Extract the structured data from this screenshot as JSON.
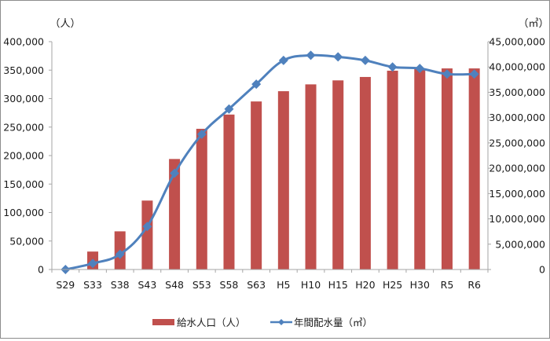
{
  "chart_data": {
    "type": "bar+line",
    "title": "",
    "categories": [
      "S29",
      "S33",
      "S38",
      "S43",
      "S48",
      "S53",
      "S58",
      "S63",
      "H5",
      "H10",
      "H15",
      "H20",
      "H25",
      "H30",
      "R5",
      "R6"
    ],
    "series": [
      {
        "name": "給水人口（人）",
        "type": "bar",
        "axis": "left",
        "color": "#c0504d",
        "values": [
          0,
          31500,
          67000,
          121000,
          194000,
          247000,
          272000,
          295000,
          313000,
          325000,
          332000,
          338000,
          349000,
          352000,
          353000,
          353000
        ]
      },
      {
        "name": "年間配水量（㎥）",
        "type": "line",
        "axis": "right",
        "color": "#4f81bd",
        "marker": "diamond",
        "values": [
          0,
          1200000,
          3000000,
          8500000,
          19000000,
          26700000,
          31700000,
          36600000,
          41300000,
          42300000,
          42000000,
          41300000,
          40000000,
          39700000,
          38600000,
          38600000
        ]
      }
    ],
    "left_axis": {
      "unit_label": "（人）",
      "ylim": [
        0,
        400000
      ],
      "ticks": [
        "0",
        "50,000",
        "100,000",
        "150,000",
        "200,000",
        "250,000",
        "300,000",
        "350,000",
        "400,000"
      ]
    },
    "right_axis": {
      "unit_label": "（㎥）",
      "ylim": [
        0,
        45000000
      ],
      "ticks": [
        "0",
        "5,000,000",
        "10,000,000",
        "15,000,000",
        "20,000,000",
        "25,000,000",
        "30,000,000",
        "35,000,000",
        "40,000,000",
        "45,000,000"
      ]
    },
    "grid": false,
    "legend_position": "bottom",
    "legend": [
      "給水人口（人）",
      "年間配水量（㎥）"
    ]
  }
}
